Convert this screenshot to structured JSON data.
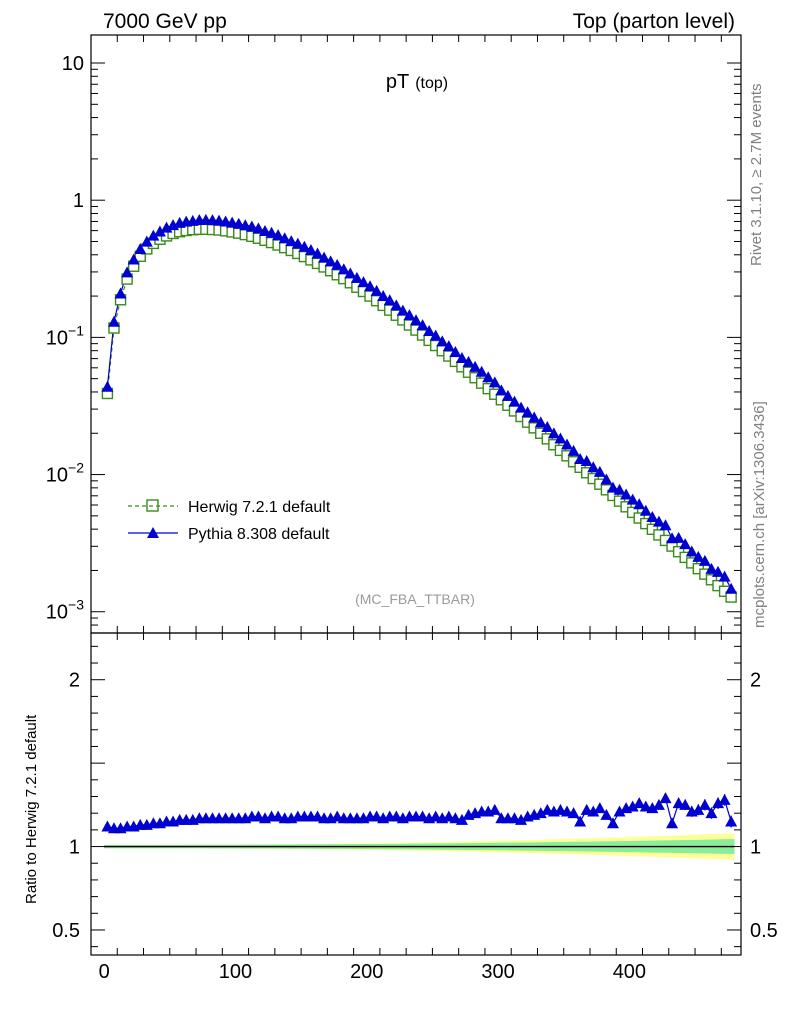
{
  "header": {
    "left": "7000 GeV pp",
    "right": "Top (parton level)"
  },
  "title": {
    "main": "pT",
    "sub": "(top)"
  },
  "side_labels": {
    "rivet": "Rivet 3.1.10, ≥ 2.7M events",
    "mcplots": "mcplots.cern.ch [arXiv:1306.3436]"
  },
  "watermark": "(MC_FBA_TTBAR)",
  "ratio_ylabel": "Ratio to Herwig 7.2.1 default",
  "legend": [
    {
      "label": "Herwig 7.2.1 default",
      "color": "#3a8a1c"
    },
    {
      "label": "Pythia 8.308 default",
      "color": "#0000d0"
    }
  ],
  "colors": {
    "herwig": "#3a8a1c",
    "pythia": "#0000d0",
    "band_outer": "#ffff99",
    "band_inner": "#88ee99"
  },
  "chart_data": [
    {
      "type": "line",
      "panel": "main",
      "yscale": "log",
      "ylim": [
        0.0007,
        16
      ],
      "xlim": [
        -10,
        485
      ],
      "y_ticks": [
        {
          "value": 10,
          "label": "10"
        },
        {
          "value": 1,
          "label": "1"
        },
        {
          "value": 0.1,
          "label": "10",
          "exp": "−1"
        },
        {
          "value": 0.01,
          "label": "10",
          "exp": "−2"
        },
        {
          "value": 0.001,
          "label": "10",
          "exp": "−3"
        }
      ],
      "x": [
        2.5,
        7.5,
        12.5,
        17.5,
        22.5,
        27.5,
        32.5,
        37.5,
        42.5,
        47.5,
        52.5,
        57.5,
        62.5,
        67.5,
        72.5,
        77.5,
        82.5,
        87.5,
        92.5,
        97.5,
        102.5,
        107.5,
        112.5,
        117.5,
        122.5,
        127.5,
        132.5,
        137.5,
        142.5,
        147.5,
        152.5,
        157.5,
        162.5,
        167.5,
        172.5,
        177.5,
        182.5,
        187.5,
        192.5,
        197.5,
        202.5,
        207.5,
        212.5,
        217.5,
        222.5,
        227.5,
        232.5,
        237.5,
        242.5,
        247.5,
        252.5,
        257.5,
        262.5,
        267.5,
        272.5,
        277.5,
        282.5,
        287.5,
        292.5,
        297.5,
        302.5,
        307.5,
        312.5,
        317.5,
        322.5,
        327.5,
        332.5,
        337.5,
        342.5,
        347.5,
        352.5,
        357.5,
        362.5,
        367.5,
        372.5,
        377.5,
        382.5,
        387.5,
        392.5,
        397.5,
        402.5,
        407.5,
        412.5,
        417.5,
        422.5,
        427.5,
        432.5,
        437.5,
        442.5,
        447.5,
        452.5,
        457.5,
        462.5,
        467.5,
        472.5,
        477.5
      ],
      "series": [
        {
          "name": "Herwig 7.2.1 default",
          "values": [
            0.039,
            0.117,
            0.188,
            0.266,
            0.33,
            0.39,
            0.441,
            0.484,
            0.519,
            0.549,
            0.572,
            0.589,
            0.601,
            0.609,
            0.613,
            0.614,
            0.611,
            0.606,
            0.598,
            0.587,
            0.575,
            0.561,
            0.545,
            0.528,
            0.51,
            0.491,
            0.471,
            0.451,
            0.43,
            0.409,
            0.388,
            0.367,
            0.346,
            0.326,
            0.306,
            0.286,
            0.268,
            0.25,
            0.232,
            0.216,
            0.2,
            0.185,
            0.171,
            0.158,
            0.145,
            0.134,
            0.123,
            0.113,
            0.104,
            0.0951,
            0.0872,
            0.0799,
            0.0731,
            0.0668,
            0.061,
            0.0557,
            0.0508,
            0.0464,
            0.0423,
            0.0385,
            0.0351,
            0.032,
            0.0291,
            0.0265,
            0.0241,
            0.0219,
            0.02,
            0.0182,
            0.0165,
            0.015,
            0.0137,
            0.0124,
            0.0113,
            0.0103,
            0.00935,
            0.00851,
            0.00774,
            0.00704,
            0.0064,
            0.00582,
            0.0053,
            0.00482,
            0.00439,
            0.00399,
            0.00363,
            0.00331,
            0.00301,
            0.00274,
            0.00249,
            0.00227,
            0.00206,
            0.00188,
            0.00171,
            0.00155,
            0.00141,
            0.00128
          ]
        },
        {
          "name": "Pythia 8.308 default",
          "ratio": [
            1.12,
            1.11,
            1.11,
            1.12,
            1.12,
            1.13,
            1.13,
            1.14,
            1.14,
            1.15,
            1.15,
            1.16,
            1.16,
            1.16,
            1.17,
            1.17,
            1.17,
            1.17,
            1.17,
            1.17,
            1.17,
            1.17,
            1.18,
            1.18,
            1.17,
            1.18,
            1.18,
            1.17,
            1.17,
            1.18,
            1.18,
            1.18,
            1.18,
            1.17,
            1.17,
            1.18,
            1.17,
            1.17,
            1.17,
            1.17,
            1.18,
            1.18,
            1.17,
            1.18,
            1.18,
            1.17,
            1.18,
            1.18,
            1.18,
            1.17,
            1.18,
            1.17,
            1.18,
            1.17,
            1.16,
            1.19,
            1.2,
            1.21,
            1.21,
            1.22,
            1.17,
            1.17,
            1.17,
            1.16,
            1.18,
            1.19,
            1.2,
            1.22,
            1.21,
            1.22,
            1.21,
            1.2,
            1.15,
            1.22,
            1.21,
            1.23,
            1.19,
            1.14,
            1.21,
            1.23,
            1.24,
            1.26,
            1.24,
            1.23,
            1.25,
            1.29,
            1.14,
            1.26,
            1.25,
            1.21,
            1.22,
            1.25,
            1.2,
            1.26,
            1.28,
            1.15
          ]
        }
      ]
    },
    {
      "type": "line",
      "panel": "ratio",
      "ylim": [
        0.35,
        2.28
      ],
      "xlim": [
        -10,
        485
      ],
      "ylabel": "Ratio to Herwig 7.2.1 default",
      "y_ticks": [
        {
          "value": 2,
          "label": "2"
        },
        {
          "value": 1,
          "label": "1"
        },
        {
          "value": 0.5,
          "label": "0.5"
        }
      ],
      "x_ticks": [
        {
          "value": 0,
          "label": "0"
        },
        {
          "value": 100,
          "label": "100"
        },
        {
          "value": 200,
          "label": "200"
        },
        {
          "value": 300,
          "label": "300"
        },
        {
          "value": 400,
          "label": "400"
        }
      ],
      "reference": 1.0
    }
  ]
}
